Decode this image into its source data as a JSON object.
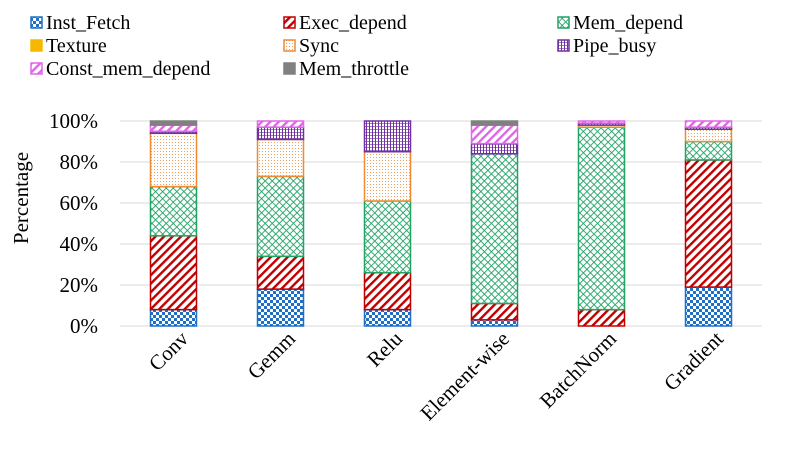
{
  "chart_data": {
    "type": "stacked-bar",
    "title": "",
    "xlabel": "",
    "ylabel": "Percentage",
    "ylim": [
      0,
      100
    ],
    "yticks": [
      0,
      20,
      40,
      60,
      80,
      100
    ],
    "ytick_labels": [
      "0%",
      "20%",
      "40%",
      "60%",
      "80%",
      "100%"
    ],
    "legend_position": "top",
    "categories": [
      "Conv",
      "Gemm",
      "Relu",
      "Element-wise",
      "BatchNorm",
      "Gradient"
    ],
    "series": [
      {
        "name": "Inst_Fetch",
        "color": "#1f6fc5",
        "pattern": "checker",
        "values": [
          8,
          18,
          8,
          3,
          0,
          19
        ]
      },
      {
        "name": "Texture",
        "color": "#f5b800",
        "pattern": "solid",
        "values": [
          0,
          0,
          0,
          0,
          0,
          0
        ]
      },
      {
        "name": "Const_mem_depend",
        "color": "#e066e6",
        "pattern": "stripes",
        "values": [
          3,
          3,
          0,
          9,
          1,
          3
        ]
      },
      {
        "name": "Exec_depend",
        "color": "#c00000",
        "pattern": "stripes",
        "values": [
          36,
          16,
          18,
          8,
          8,
          62
        ]
      },
      {
        "name": "Sync",
        "color": "#f08a30",
        "pattern": "dots",
        "values": [
          26,
          18,
          24,
          0,
          1,
          6
        ]
      },
      {
        "name": "Mem_throttle",
        "color": "#808080",
        "pattern": "solid",
        "values": [
          2,
          0,
          0,
          2,
          0,
          0
        ]
      },
      {
        "name": "Mem_depend",
        "color": "#21a366",
        "pattern": "crosshatch",
        "values": [
          24,
          39,
          35,
          73,
          89,
          9
        ]
      },
      {
        "name": "Pipe_busy",
        "color": "#7030a0",
        "pattern": "grid",
        "values": [
          1,
          6,
          15,
          5,
          1,
          1
        ]
      }
    ],
    "stack_order": [
      "Inst_Fetch",
      "Exec_depend",
      "Mem_depend",
      "Sync",
      "Texture",
      "Pipe_busy",
      "Const_mem_depend",
      "Mem_throttle"
    ],
    "legend_order": [
      "Inst_Fetch",
      "Exec_depend",
      "Mem_depend",
      "Texture",
      "Sync",
      "Pipe_busy",
      "Const_mem_depend",
      "Mem_throttle"
    ]
  }
}
